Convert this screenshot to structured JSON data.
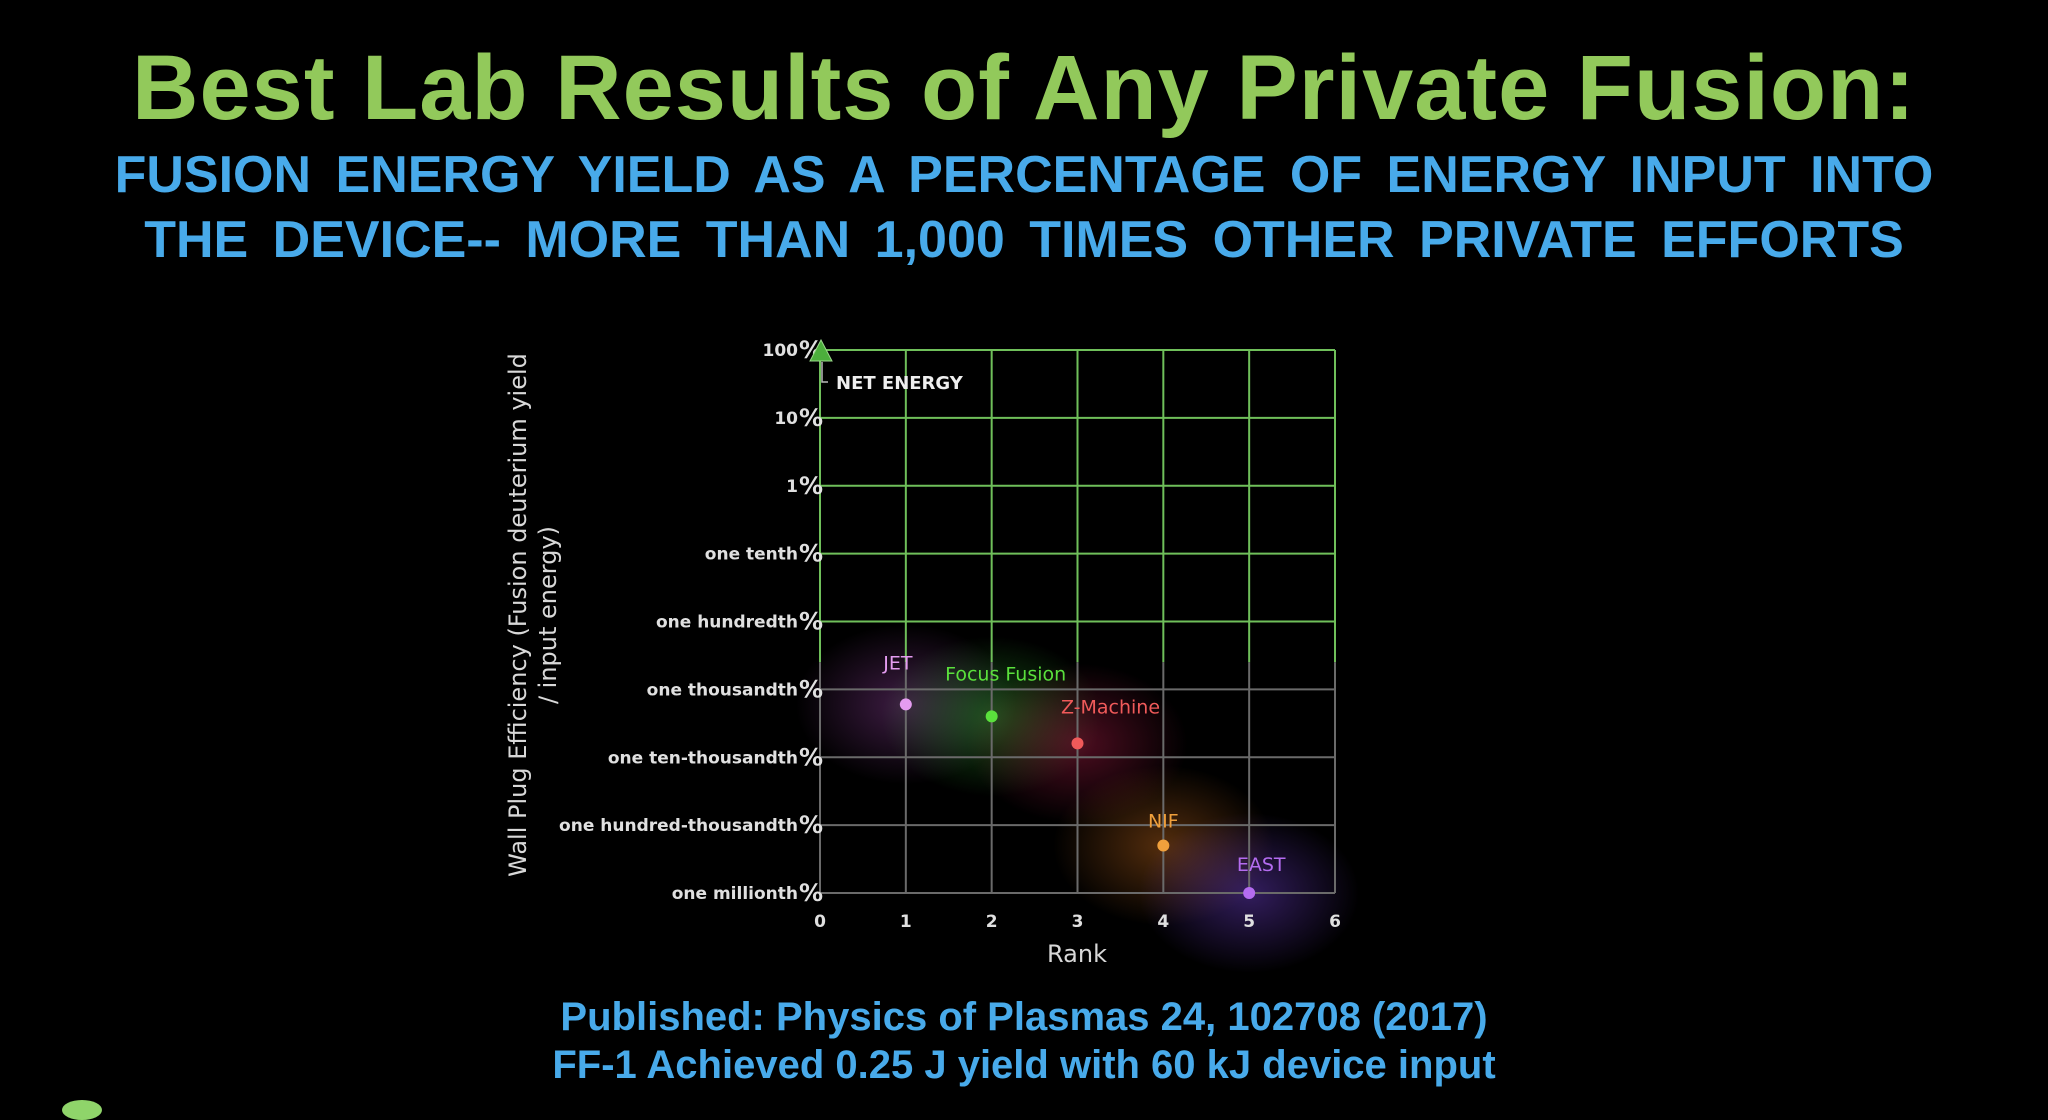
{
  "slide": {
    "title": "Best Lab Results of Any Private Fusion:",
    "subtitle_line1": "FUSION  ENERGY YIELD  AS  A PERCENTAGE  OF ENERGY INPUT INTO",
    "subtitle_line2": "THE  DEVICE-- MORE THAN 1,000 TIMES OTHER PRIVATE EFFORTS",
    "footer_line1": "Published: Physics of Plasmas 24, 102708 (2017)",
    "footer_line2": "FF-1 Achieved 0.25 J yield with 60 kJ device input",
    "colors": {
      "title": "#92c95b",
      "subtitle": "#48aaea",
      "grid_upper": "#6fbf5a",
      "grid_lower": "#6a6a6a",
      "background": "#000000"
    }
  },
  "chart_data": {
    "type": "scatter",
    "title": "",
    "xlabel": "Rank",
    "ylabel": "Wall Plug Efficiency (Fusion deuterium yield / input energy)",
    "ylabel_line1": "Wall Plug Efficiency (Fusion deuterium yield",
    "ylabel_line2": "/ input energy)",
    "xlim": [
      0,
      6
    ],
    "x_ticks": [
      "0",
      "1",
      "2",
      "3",
      "4",
      "5",
      "6"
    ],
    "y_scale": "log",
    "ylim_percent": [
      1e-06,
      100
    ],
    "y_ticks": [
      {
        "label": "100",
        "value_percent": 100
      },
      {
        "label": "10",
        "value_percent": 10
      },
      {
        "label": "1",
        "value_percent": 1
      },
      {
        "label": "one  tenth",
        "value_percent": 0.1
      },
      {
        "label": "one hundredth",
        "value_percent": 0.01
      },
      {
        "label": "one thousandth ",
        "value_percent": 0.001
      },
      {
        "label": "one ten-thousandth ",
        "value_percent": 0.0001
      },
      {
        "label": "one hundred-thousandth ",
        "value_percent": 1e-05
      },
      {
        "label": "one millionth",
        "value_percent": 1e-06
      }
    ],
    "y_tick_suffix": "%",
    "grid": true,
    "annotation": {
      "label": "NET ENERGY",
      "x": 0,
      "y_percent": 100,
      "marker": "triangle-up",
      "color": "#4caf3c"
    },
    "points": [
      {
        "name": "JET",
        "x": 1,
        "y_percent": 0.0006,
        "color": "#e49cf0"
      },
      {
        "name": "Focus Fusion",
        "x": 2,
        "y_percent": 0.0004,
        "color": "#5ae03c"
      },
      {
        "name": "Z-Machine",
        "x": 3,
        "y_percent": 0.00016,
        "color": "#f05a5a"
      },
      {
        "name": "NIF",
        "x": 4,
        "y_percent": 5e-06,
        "color": "#f0a03c"
      },
      {
        "name": "EAST",
        "x": 5,
        "y_percent": 1e-06,
        "color": "#b46cf0"
      }
    ]
  }
}
